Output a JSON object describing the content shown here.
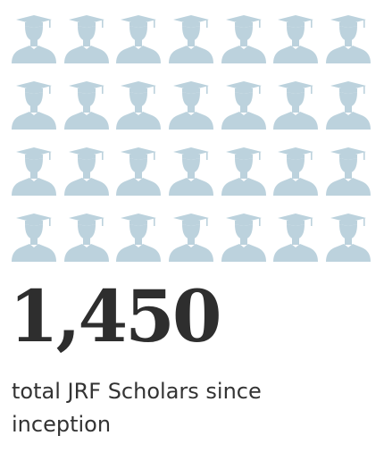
{
  "stat": {
    "number": "1,450",
    "label": "total JRF Scholars since inception"
  },
  "icons": {
    "name": "graduate-icon",
    "color": "#bcd2dd",
    "rows": 4,
    "columns": 7
  }
}
